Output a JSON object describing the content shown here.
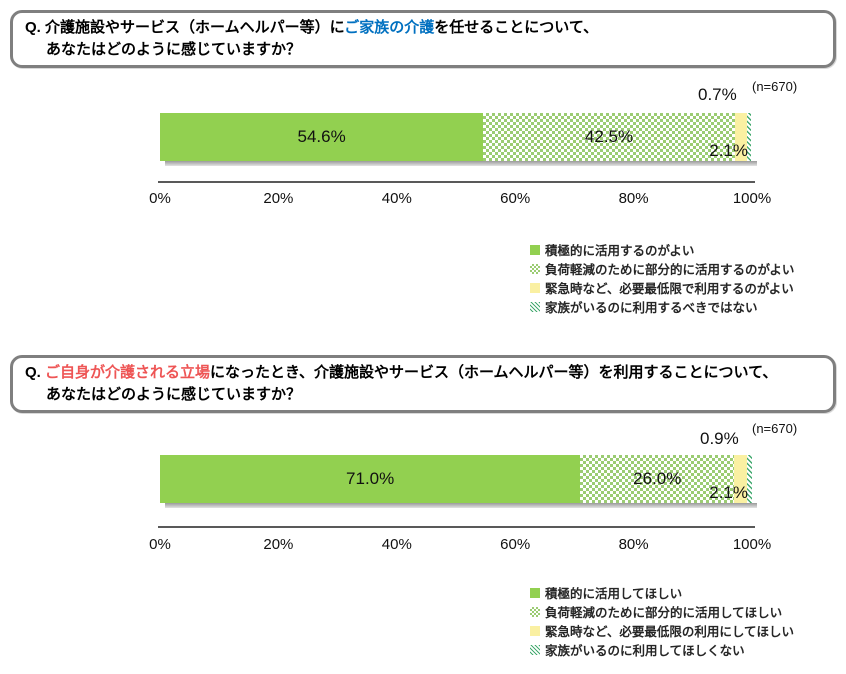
{
  "colors": {
    "bar_green_solid": "#92D050",
    "bar_checker_green": "#9BCC72",
    "bar_yellow": "#FAF0A2",
    "bar_hatch_green": "#44AA70",
    "question_highlight_blue": "#0070C0",
    "question_highlight_red": "#EE5555",
    "box_border_gray": "#7F7F7F"
  },
  "charts": [
    {
      "question": {
        "prefix": "Q. ",
        "pre": "介護施設やサービス（ホームヘルパー等）に",
        "highlight": "ご家族の介護",
        "post": "を任せることについて、",
        "line2": "あなたはどのように感じていますか？"
      },
      "n_label": "(n=670)",
      "segments": [
        {
          "name": "積極的に活用するのがよい",
          "label": "54.6%",
          "value": 54.6
        },
        {
          "name": "負荷軽減のために部分的に活用するのがよい",
          "label": "42.5%",
          "value": 42.5
        },
        {
          "name": "緊急時など、必要最低限で利用するのがよい",
          "label": "2.1%",
          "value": 2.1
        },
        {
          "name": "家族がいるのに利用するべきではない",
          "label": "0.7%",
          "value": 0.7
        }
      ],
      "axis_ticks": [
        "0%",
        "20%",
        "40%",
        "60%",
        "80%",
        "100%"
      ],
      "legend": [
        "積極的に活用するのがよい",
        "負荷軽減のために部分的に活用するのがよい",
        "緊急時など、必要最低限で利用するのがよい",
        "家族がいるのに利用するべきではない"
      ]
    },
    {
      "question": {
        "prefix": "Q. ",
        "pre": "",
        "highlight": "ご自身が介護される立場",
        "post": "になったとき、介護施設やサービス（ホームヘルパー等）を利用することについて、",
        "line2": "あなたはどのように感じていますか？"
      },
      "n_label": "(n=670)",
      "segments": [
        {
          "name": "積極的に活用してほしい",
          "label": "71.0%",
          "value": 71.0
        },
        {
          "name": "負荷軽減のために部分的に活用してほしい",
          "label": "26.0%",
          "value": 26.0
        },
        {
          "name": "緊急時など、必要最低限の利用にしてほしい",
          "label": "2.1%",
          "value": 2.1
        },
        {
          "name": "家族がいるのに利用してほしくない",
          "label": "0.9%",
          "value": 0.9
        }
      ],
      "axis_ticks": [
        "0%",
        "20%",
        "40%",
        "60%",
        "80%",
        "100%"
      ],
      "legend": [
        "積極的に活用してほしい",
        "負荷軽減のために部分的に活用してほしい",
        "緊急時など、必要最低限の利用にしてほしい",
        "家族がいるのに利用してほしくない"
      ]
    }
  ],
  "chart_data": [
    {
      "type": "bar",
      "subtype": "horizontal-stacked-100pct",
      "title": "Q. 介護施設やサービス（ホームヘルパー等）にご家族の介護を任せることについて、あなたはどのように感じていますか？",
      "n": 670,
      "categories": [
        "積極的に活用するのがよい",
        "負荷軽減のために部分的に活用するのがよい",
        "緊急時など、必要最低限で利用するのがよい",
        "家族がいるのに利用するべきではない"
      ],
      "values": [
        54.6,
        42.5,
        2.1,
        0.7
      ],
      "xlabel": "",
      "ylabel": "",
      "xlim": [
        0,
        100
      ],
      "xticks": [
        "0%",
        "20%",
        "40%",
        "60%",
        "80%",
        "100%"
      ],
      "grid": false,
      "legend_position": "below-right"
    },
    {
      "type": "bar",
      "subtype": "horizontal-stacked-100pct",
      "title": "Q. ご自身が介護される立場になったとき、介護施設やサービス（ホームヘルパー等）を利用することについて、あなたはどのように感じていますか？",
      "n": 670,
      "categories": [
        "積極的に活用してほしい",
        "負荷軽減のために部分的に活用してほしい",
        "緊急時など、必要最低限の利用にしてほしい",
        "家族がいるのに利用してほしくない"
      ],
      "values": [
        71.0,
        26.0,
        2.1,
        0.9
      ],
      "xlabel": "",
      "ylabel": "",
      "xlim": [
        0,
        100
      ],
      "xticks": [
        "0%",
        "20%",
        "40%",
        "60%",
        "80%",
        "100%"
      ],
      "grid": false,
      "legend_position": "below-right"
    }
  ]
}
